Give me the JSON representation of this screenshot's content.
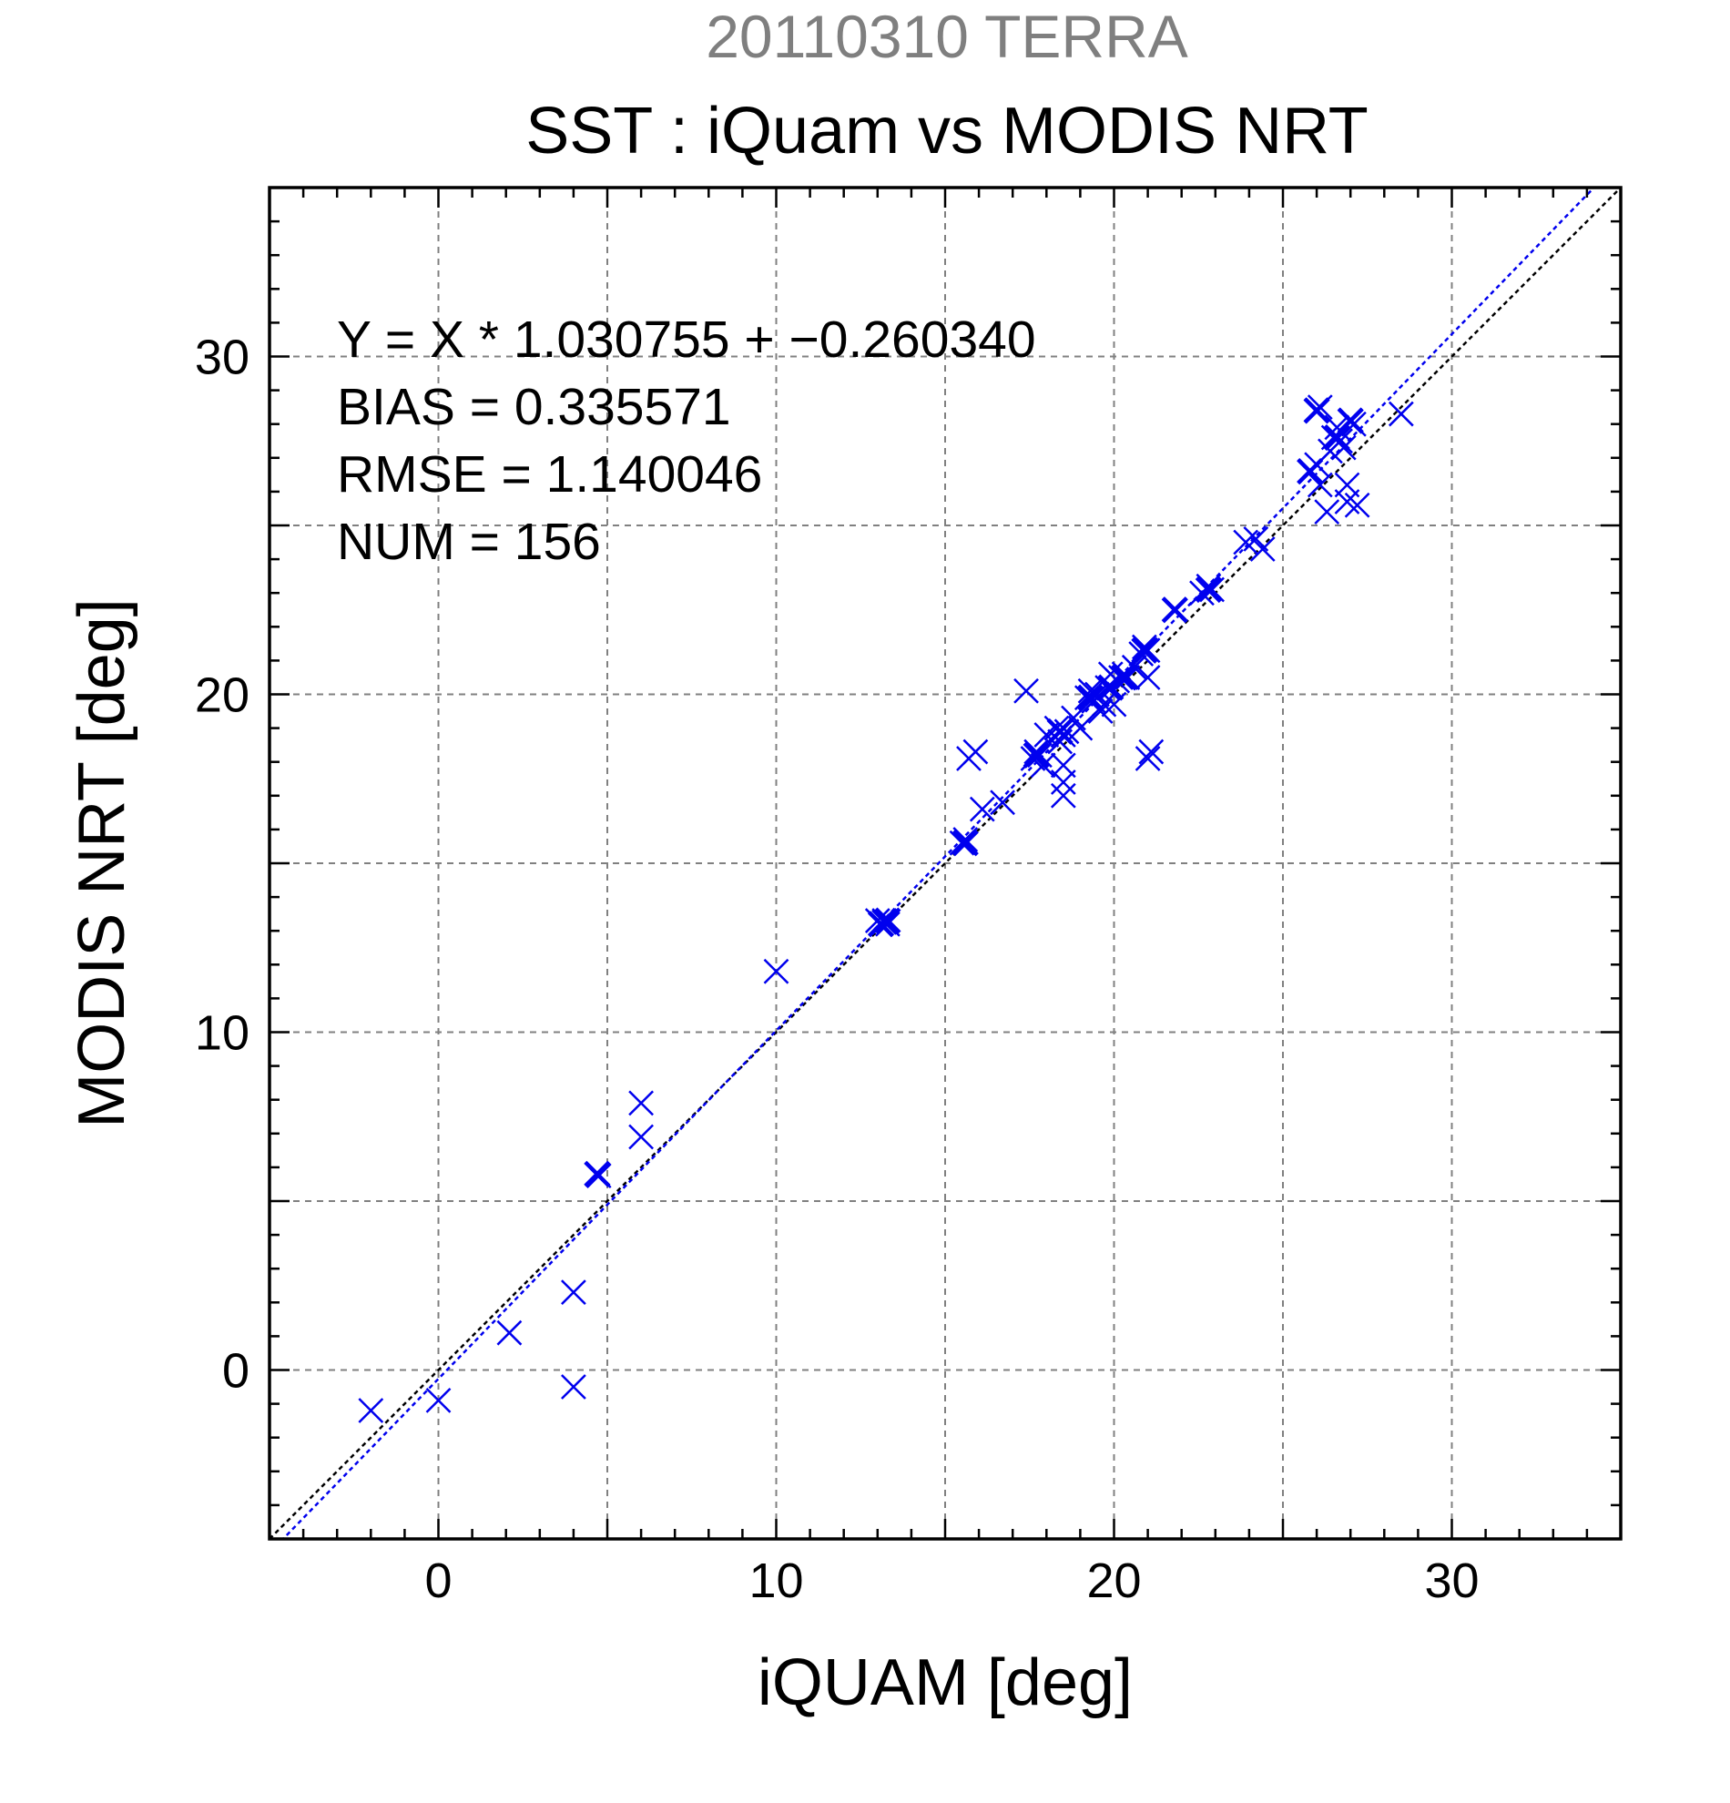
{
  "header": {
    "supertitle": "20110310 TERRA",
    "title": "SST : iQuam vs MODIS NRT"
  },
  "stats": {
    "equation": "Y = X * 1.030755 + −0.260340",
    "bias": "BIAS = 0.335571",
    "rmse": "RMSE = 1.140046",
    "num": "NUM = 156"
  },
  "colors": {
    "marker": "#0000ee",
    "fit_line": "#0000ee",
    "identity_line": "#000000",
    "grid": "#808080",
    "supertitle": "#7f7f7f"
  },
  "chart_data": {
    "type": "scatter",
    "title": "SST : iQuam vs MODIS NRT",
    "supertitle": "20110310 TERRA",
    "xlabel": "iQUAM [deg]",
    "ylabel": "MODIS NRT [deg]",
    "xlim": [
      -5,
      35
    ],
    "ylim": [
      -5,
      35
    ],
    "xticks": [
      0,
      10,
      20,
      30
    ],
    "yticks": [
      0,
      10,
      20,
      30
    ],
    "xtick_labels": [
      "0",
      "10",
      "20",
      "30"
    ],
    "ytick_labels": [
      "0",
      "10",
      "20",
      "30"
    ],
    "grid": true,
    "marker": "x",
    "fit": {
      "slope": 1.030755,
      "intercept": -0.26034,
      "style": "dashed",
      "color": "#0000ee"
    },
    "identity": {
      "slope": 1,
      "intercept": 0,
      "style": "dashed",
      "color": "#000000"
    },
    "points": [
      [
        -2.0,
        -1.2
      ],
      [
        0.0,
        -0.9
      ],
      [
        2.1,
        1.1
      ],
      [
        4.0,
        2.3
      ],
      [
        4.0,
        -0.5
      ],
      [
        4.7,
        5.8
      ],
      [
        4.75,
        5.75
      ],
      [
        6.0,
        7.9
      ],
      [
        6.0,
        6.9
      ],
      [
        10.0,
        11.8
      ],
      [
        13.0,
        13.3
      ],
      [
        13.1,
        13.2
      ],
      [
        13.2,
        13.3
      ],
      [
        13.3,
        13.2
      ],
      [
        13.2,
        13.25
      ],
      [
        15.5,
        15.6
      ],
      [
        15.6,
        15.7
      ],
      [
        15.7,
        18.1
      ],
      [
        15.9,
        18.3
      ],
      [
        16.1,
        16.6
      ],
      [
        16.7,
        16.8
      ],
      [
        17.4,
        20.1
      ],
      [
        17.6,
        18.1
      ],
      [
        17.7,
        18.3
      ],
      [
        17.8,
        18.2
      ],
      [
        17.9,
        17.9
      ],
      [
        18.0,
        18.8
      ],
      [
        18.3,
        19.0
      ],
      [
        18.4,
        18.6
      ],
      [
        18.5,
        18.8
      ],
      [
        18.5,
        17.9
      ],
      [
        18.5,
        17.4
      ],
      [
        18.5,
        17.0
      ],
      [
        18.6,
        18.9
      ],
      [
        18.8,
        19.3
      ],
      [
        19.0,
        19.0
      ],
      [
        19.2,
        19.9
      ],
      [
        19.3,
        20.1
      ],
      [
        19.4,
        19.8
      ],
      [
        19.5,
        20.0
      ],
      [
        19.6,
        19.5
      ],
      [
        19.7,
        19.7
      ],
      [
        19.8,
        20.2
      ],
      [
        19.9,
        20.6
      ],
      [
        20.0,
        19.7
      ],
      [
        20.1,
        20.4
      ],
      [
        20.2,
        20.5
      ],
      [
        20.3,
        20.6
      ],
      [
        20.4,
        20.5
      ],
      [
        20.6,
        20.8
      ],
      [
        20.8,
        21.2
      ],
      [
        20.9,
        21.4
      ],
      [
        21.0,
        21.3
      ],
      [
        21.0,
        18.1
      ],
      [
        21.0,
        20.5
      ],
      [
        21.1,
        18.3
      ],
      [
        21.8,
        22.5
      ],
      [
        22.6,
        23.0
      ],
      [
        22.8,
        23.2
      ],
      [
        22.9,
        23.1
      ],
      [
        23.9,
        24.5
      ],
      [
        24.2,
        24.6
      ],
      [
        24.4,
        24.3
      ],
      [
        25.8,
        26.6
      ],
      [
        26.0,
        28.4
      ],
      [
        26.0,
        26.8
      ],
      [
        26.1,
        28.5
      ],
      [
        26.1,
        26.2
      ],
      [
        26.3,
        25.4
      ],
      [
        26.4,
        27.2
      ],
      [
        26.5,
        27.6
      ],
      [
        26.6,
        27.9
      ],
      [
        26.7,
        27.5
      ],
      [
        26.8,
        27.3
      ],
      [
        26.9,
        26.2
      ],
      [
        26.9,
        25.7
      ],
      [
        27.0,
        28.1
      ],
      [
        27.1,
        28.0
      ],
      [
        27.2,
        25.6
      ],
      [
        28.5,
        28.3
      ]
    ],
    "bold_points": [
      [
        4.7,
        5.8
      ],
      [
        13.1,
        13.2
      ],
      [
        13.3,
        13.3
      ],
      [
        15.6,
        15.6
      ],
      [
        17.7,
        18.2
      ],
      [
        18.4,
        18.9
      ],
      [
        19.3,
        19.9
      ],
      [
        19.9,
        20.2
      ],
      [
        20.3,
        20.5
      ],
      [
        20.9,
        21.3
      ],
      [
        21.8,
        22.5
      ],
      [
        22.8,
        23.1
      ],
      [
        25.8,
        26.6
      ],
      [
        26.0,
        28.4
      ],
      [
        26.6,
        27.6
      ],
      [
        27.0,
        28.1
      ]
    ]
  }
}
